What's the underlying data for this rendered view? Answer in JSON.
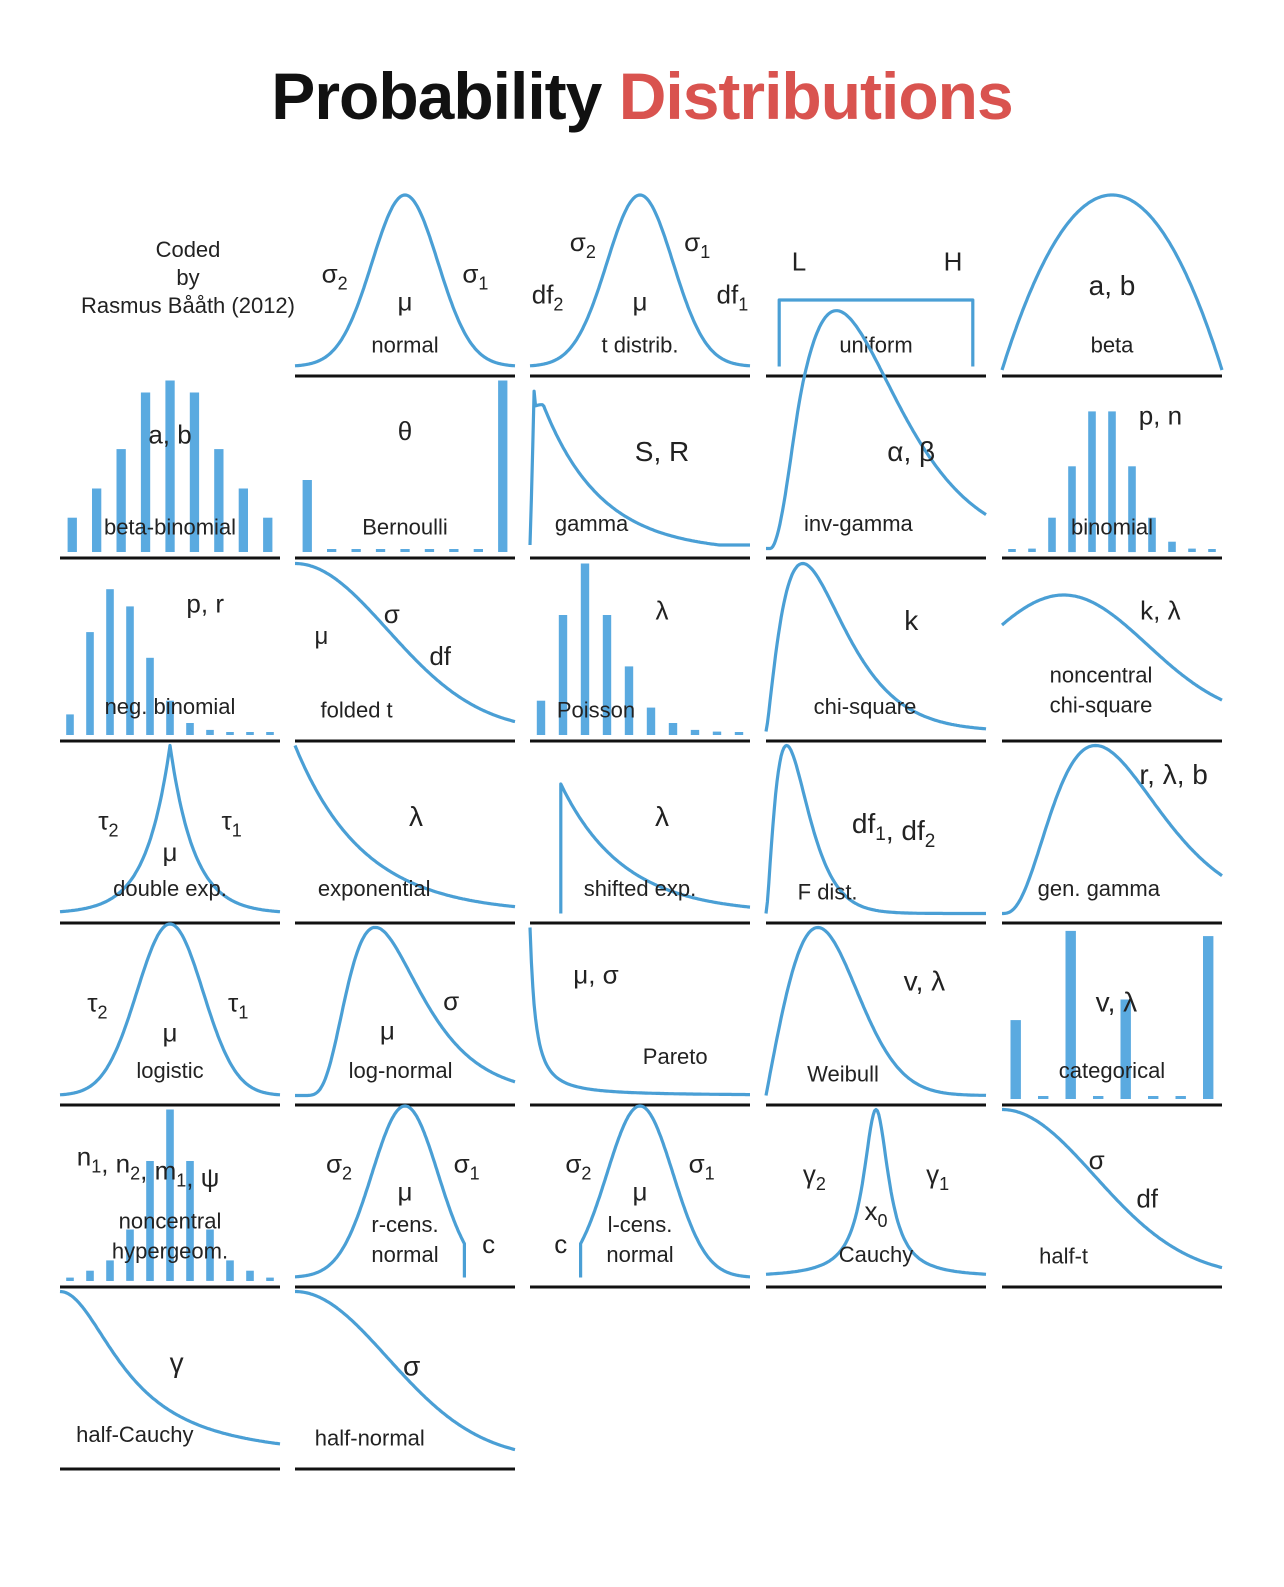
{
  "title": {
    "word1": "Probability",
    "word2": "Distributions",
    "accent_color": "#d9534f"
  },
  "credit": {
    "line1": "Coded",
    "line2": "by",
    "line3": "Rasmus Bååth (2012)"
  },
  "colors": {
    "curve": "#4a9fd5",
    "bar": "#5aaae0",
    "axis": "#111111",
    "text": "#222222"
  },
  "panels": [
    {
      "name": "normal",
      "kind": "curve",
      "shape": "normal",
      "params": [
        {
          "t": "σ₂"
        },
        {
          "t": "σ₁"
        },
        {
          "t": "μ"
        }
      ]
    },
    {
      "name": "t distrib.",
      "kind": "curve",
      "shape": "normal",
      "params": [
        {
          "t": "σ₂"
        },
        {
          "t": "σ₁"
        },
        {
          "t": "df₂"
        },
        {
          "t": "μ"
        },
        {
          "t": "df₁"
        }
      ]
    },
    {
      "name": "uniform",
      "kind": "curve",
      "shape": "uniform",
      "params": [
        {
          "t": "L"
        },
        {
          "t": "H"
        }
      ]
    },
    {
      "name": "beta",
      "kind": "curve",
      "shape": "beta",
      "params": [
        {
          "t": "a, b"
        }
      ]
    },
    {
      "name": "beta-binomial",
      "kind": "bars",
      "bars": [
        0.2,
        0.37,
        0.6,
        0.93,
        1.0,
        0.93,
        0.6,
        0.37,
        0.2
      ],
      "params": [
        {
          "t": "a, b"
        }
      ]
    },
    {
      "name": "Bernoulli",
      "kind": "bars",
      "bars": [
        0.42,
        0,
        0,
        0,
        0,
        0,
        0,
        0,
        1.0
      ],
      "params": [
        {
          "t": "θ"
        }
      ]
    },
    {
      "name": "gamma",
      "kind": "curve",
      "shape": "gamma",
      "params": [
        {
          "t": "S, R"
        }
      ]
    },
    {
      "name": "inv-gamma",
      "kind": "curve",
      "shape": "invgamma",
      "params": [
        {
          "t": "α, β"
        }
      ]
    },
    {
      "name": "binomial",
      "kind": "bars",
      "bars": [
        0,
        0.02,
        0.2,
        0.5,
        0.82,
        0.82,
        0.5,
        0.2,
        0.06,
        0.02,
        0.01
      ],
      "params": [
        {
          "t": "p, n"
        }
      ]
    },
    {
      "name": "neg. binomial",
      "kind": "bars",
      "bars": [
        0.12,
        0.6,
        0.85,
        0.75,
        0.45,
        0.2,
        0.07,
        0.03,
        0.01,
        0.01,
        0.01
      ],
      "params": [
        {
          "t": "p, r"
        }
      ]
    },
    {
      "name": "folded t",
      "kind": "curve",
      "shape": "halfnormal",
      "params": [
        {
          "t": "μ"
        },
        {
          "t": "σ"
        },
        {
          "t": "df"
        }
      ]
    },
    {
      "name": "Poisson",
      "kind": "bars",
      "bars": [
        0.2,
        0.7,
        1.0,
        0.7,
        0.4,
        0.16,
        0.07,
        0.03,
        0.02,
        0.01
      ],
      "params": [
        {
          "t": "λ"
        }
      ]
    },
    {
      "name": "chi-square",
      "kind": "curve",
      "shape": "chisq",
      "params": [
        {
          "t": "k"
        }
      ]
    },
    {
      "name": "noncentral chi-square",
      "kind": "curve",
      "shape": "noncentral",
      "params": [
        {
          "t": "k, λ"
        }
      ]
    },
    {
      "name": "double exp.",
      "kind": "curve",
      "shape": "laplace",
      "params": [
        {
          "t": "τ₂"
        },
        {
          "t": "τ₁"
        },
        {
          "t": "μ"
        }
      ]
    },
    {
      "name": "exponential",
      "kind": "curve",
      "shape": "exponential",
      "params": [
        {
          "t": "λ"
        }
      ]
    },
    {
      "name": "shifted exp.",
      "kind": "curve",
      "shape": "shiftedexp",
      "params": [
        {
          "t": "λ"
        }
      ]
    },
    {
      "name": "F dist.",
      "kind": "curve",
      "shape": "fdist",
      "params": [
        {
          "t": "df₁, df₂"
        }
      ]
    },
    {
      "name": "gen. gamma",
      "kind": "curve",
      "shape": "gengamma",
      "params": [
        {
          "t": "r, λ, b"
        }
      ]
    },
    {
      "name": "logistic",
      "kind": "curve",
      "shape": "normal",
      "params": [
        {
          "t": "τ₂"
        },
        {
          "t": "τ₁"
        },
        {
          "t": "μ"
        }
      ]
    },
    {
      "name": "log-normal",
      "kind": "curve",
      "shape": "lognormal",
      "params": [
        {
          "t": "σ"
        },
        {
          "t": "μ"
        }
      ]
    },
    {
      "name": "Pareto",
      "kind": "curve",
      "shape": "pareto",
      "params": [
        {
          "t": "μ, σ"
        }
      ]
    },
    {
      "name": "Weibull",
      "kind": "curve",
      "shape": "weibull",
      "params": [
        {
          "t": "v, λ"
        }
      ]
    },
    {
      "name": "categorical",
      "kind": "bars",
      "bars": [
        0.46,
        0,
        0.98,
        0,
        0.58,
        0,
        0,
        0.95
      ],
      "params": [
        {
          "t": "v, λ"
        }
      ]
    },
    {
      "name": "noncentral hypergeom.",
      "kind": "bars",
      "bars": [
        0.02,
        0.06,
        0.12,
        0.3,
        0.7,
        1.0,
        0.7,
        0.3,
        0.12,
        0.06,
        0.02
      ],
      "params": [
        {
          "t": "n₁, n₂, m₁, ψ"
        }
      ]
    },
    {
      "name": "r-cens. normal",
      "kind": "curve",
      "shape": "rcens",
      "params": [
        {
          "t": "σ₂"
        },
        {
          "t": "σ₁"
        },
        {
          "t": "μ"
        },
        {
          "t": "c"
        }
      ]
    },
    {
      "name": "l-cens. normal",
      "kind": "curve",
      "shape": "lcens",
      "params": [
        {
          "t": "σ₂"
        },
        {
          "t": "σ₁"
        },
        {
          "t": "μ"
        },
        {
          "t": "c"
        }
      ]
    },
    {
      "name": "Cauchy",
      "kind": "curve",
      "shape": "cauchy",
      "params": [
        {
          "t": "γ₂"
        },
        {
          "t": "γ₁"
        },
        {
          "t": "x₀"
        }
      ]
    },
    {
      "name": "half-t",
      "kind": "curve",
      "shape": "halfnormal",
      "params": [
        {
          "t": "σ"
        },
        {
          "t": "df"
        }
      ]
    },
    {
      "name": "half-Cauchy",
      "kind": "curve",
      "shape": "halfcauchy",
      "params": [
        {
          "t": "γ"
        }
      ]
    },
    {
      "name": "half-normal",
      "kind": "curve",
      "shape": "halfnormal",
      "params": [
        {
          "t": "σ"
        }
      ]
    }
  ]
}
